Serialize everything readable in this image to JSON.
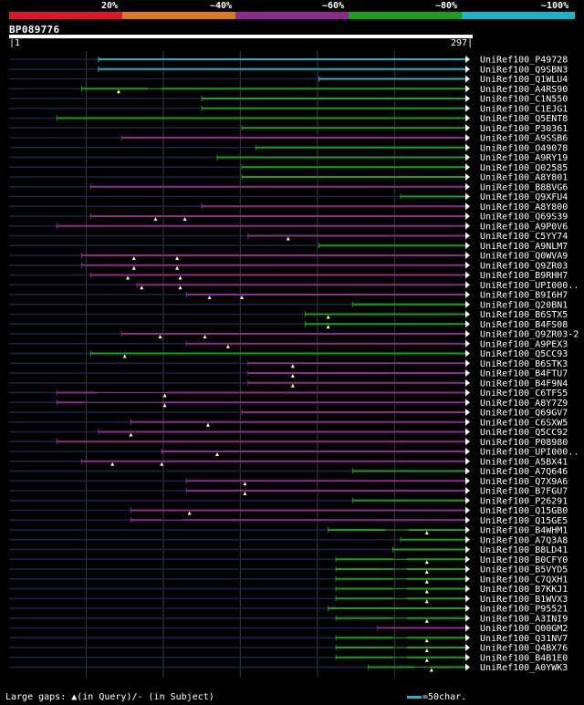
{
  "legend": {
    "labels": [
      "20%",
      "~40%",
      "~60%",
      "~80%",
      "~100%"
    ],
    "colors": [
      "#e0162b",
      "#e0781c",
      "#8e2a8e",
      "#18a018",
      "#17b7c7"
    ]
  },
  "query_id": "BP089776",
  "ruler": {
    "start": "1",
    "end": "297"
  },
  "colors": {
    "query_line": "#1c2350",
    "grid": "#3a3a3a",
    "gap_marker": "#ffff9e",
    "arrow_fill": "#ffffff"
  },
  "hits": [
    {
      "name": "UniRef100_P49728",
      "cls": 4,
      "start": 59,
      "mid": null,
      "gaps": []
    },
    {
      "name": "UniRef100_Q9SBN3",
      "cls": 4,
      "start": 59,
      "mid": null,
      "gaps": []
    },
    {
      "name": "UniRef100_Q1WLU4",
      "cls": 4,
      "start": 202,
      "mid": null,
      "gaps": []
    },
    {
      "name": "UniRef100_A4RS90",
      "cls": 3,
      "start": 48,
      "mid": [
        91,
        100
      ],
      "gaps": [
        72
      ]
    },
    {
      "name": "UniRef100_C1N550",
      "cls": 3,
      "start": 126,
      "mid": null,
      "gaps": []
    },
    {
      "name": "UniRef100_C1EJG1",
      "cls": 3,
      "start": 126,
      "mid": null,
      "gaps": []
    },
    {
      "name": "UniRef100_Q5ENT8",
      "cls": 3,
      "start": 32,
      "mid": null,
      "gaps": []
    },
    {
      "name": "UniRef100_P30361",
      "cls": 3,
      "start": 152,
      "mid": null,
      "gaps": []
    },
    {
      "name": "UniRef100_A9SSB6",
      "cls": 2,
      "start": 74,
      "mid": null,
      "gaps": []
    },
    {
      "name": "UniRef100_O49078",
      "cls": 3,
      "start": 161,
      "mid": null,
      "gaps": []
    },
    {
      "name": "UniRef100_A9RY19",
      "cls": 3,
      "start": 136,
      "mid": null,
      "gaps": []
    },
    {
      "name": "UniRef100_Q02585",
      "cls": 3,
      "start": 152,
      "mid": null,
      "gaps": []
    },
    {
      "name": "UniRef100_A8Y801",
      "cls": 3,
      "start": 152,
      "mid": null,
      "gaps": []
    },
    {
      "name": "UniRef100_B8BVG6",
      "cls": 2,
      "start": 54,
      "mid": null,
      "gaps": []
    },
    {
      "name": "UniRef100_Q9XFU4",
      "cls": 3,
      "start": 255,
      "mid": null,
      "gaps": []
    },
    {
      "name": "UniRef100_A8Y800",
      "cls": 2,
      "start": 126,
      "mid": null,
      "gaps": []
    },
    {
      "name": "UniRef100_Q69S39",
      "cls": 2,
      "start": 54,
      "mid": null,
      "gaps": [
        96,
        115
      ]
    },
    {
      "name": "UniRef100_A9P0V6",
      "cls": 2,
      "start": 32,
      "mid": null,
      "gaps": []
    },
    {
      "name": "UniRef100_C5YY74",
      "cls": 2,
      "start": 156,
      "mid": null,
      "gaps": [
        182
      ]
    },
    {
      "name": "UniRef100_A9NLM7",
      "cls": 3,
      "start": 202,
      "mid": null,
      "gaps": []
    },
    {
      "name": "UniRef100_Q0WVA9",
      "cls": 2,
      "start": 48,
      "mid": null,
      "gaps": [
        82,
        110
      ]
    },
    {
      "name": "UniRef100_Q9ZR03",
      "cls": 2,
      "start": 48,
      "mid": null,
      "gaps": [
        82,
        110
      ]
    },
    {
      "name": "UniRef100_B9RHH7",
      "cls": 2,
      "start": 54,
      "mid": null,
      "gaps": [
        78,
        112
      ]
    },
    {
      "name": "UniRef100_UPI000..",
      "cls": 2,
      "start": 84,
      "mid": null,
      "gaps": [
        87,
        112
      ]
    },
    {
      "name": "UniRef100_B9I6H7",
      "cls": 2,
      "start": 116,
      "mid": null,
      "gaps": [
        131,
        152
      ]
    },
    {
      "name": "UniRef100_Q20BN1",
      "cls": 3,
      "start": 224,
      "mid": null,
      "gaps": []
    },
    {
      "name": "UniRef100_B6STX5",
      "cls": 3,
      "start": 193,
      "mid": null,
      "gaps": [
        208
      ]
    },
    {
      "name": "UniRef100_B4FS08",
      "cls": 3,
      "start": 193,
      "mid": null,
      "gaps": [
        208
      ]
    },
    {
      "name": "UniRef100_Q9ZR03-2",
      "cls": 2,
      "start": 74,
      "mid": null,
      "gaps": [
        99,
        128
      ]
    },
    {
      "name": "UniRef100_A9PEX3",
      "cls": 2,
      "start": 116,
      "mid": null,
      "gaps": [
        143
      ]
    },
    {
      "name": "UniRef100_Q5CC93",
      "cls": 3,
      "start": 54,
      "mid": null,
      "gaps": [
        76
      ]
    },
    {
      "name": "UniRef100_B6STK3",
      "cls": 2,
      "start": 156,
      "mid": null,
      "gaps": [
        185
      ]
    },
    {
      "name": "UniRef100_B4FTU7",
      "cls": 2,
      "start": 156,
      "mid": null,
      "gaps": [
        185
      ]
    },
    {
      "name": "UniRef100_B4F9N4",
      "cls": 2,
      "start": 156,
      "mid": null,
      "gaps": [
        185
      ]
    },
    {
      "name": "UniRef100_C6TFS5",
      "cls": 2,
      "start": 32,
      "mid": [
        58,
        103
      ],
      "gaps": [
        102
      ]
    },
    {
      "name": "UniRef100_A8Y7Z9",
      "cls": 2,
      "start": 32,
      "mid": [
        50,
        100
      ],
      "gaps": [
        102
      ]
    },
    {
      "name": "UniRef100_Q69GV7",
      "cls": 2,
      "start": 152,
      "mid": null,
      "gaps": []
    },
    {
      "name": "UniRef100_C6SXW5",
      "cls": 2,
      "start": 80,
      "mid": null,
      "gaps": [
        130
      ]
    },
    {
      "name": "UniRef100_Q5CC92",
      "cls": 2,
      "start": 59,
      "mid": null,
      "gaps": [
        80
      ]
    },
    {
      "name": "UniRef100_P08980",
      "cls": 2,
      "start": 32,
      "mid": null,
      "gaps": []
    },
    {
      "name": "UniRef100_UPI000..",
      "cls": 2,
      "start": 100,
      "mid": null,
      "gaps": [
        136
      ]
    },
    {
      "name": "UniRef100_A5BX41",
      "cls": 2,
      "start": 48,
      "mid": null,
      "gaps": [
        68,
        100
      ]
    },
    {
      "name": "UniRef100_A7Q646",
      "cls": 3,
      "start": 224,
      "mid": null,
      "gaps": []
    },
    {
      "name": "UniRef100_Q7X9A6",
      "cls": 2,
      "start": 116,
      "mid": null,
      "gaps": [
        154
      ]
    },
    {
      "name": "UniRef100_B7FGU7",
      "cls": 2,
      "start": 116,
      "mid": null,
      "gaps": [
        154
      ]
    },
    {
      "name": "UniRef100_P26291",
      "cls": 3,
      "start": 224,
      "mid": null,
      "gaps": []
    },
    {
      "name": "UniRef100_Q15GB0",
      "cls": 2,
      "start": 80,
      "mid": null,
      "gaps": [
        118
      ]
    },
    {
      "name": "UniRef100_Q15GE5",
      "cls": 2,
      "start": 80,
      "mid": [
        100,
        114
      ],
      "gaps": []
    },
    {
      "name": "UniRef100_B4WHM1",
      "cls": 3,
      "start": 208,
      "mid": [
        245,
        260
      ],
      "gaps": [
        272
      ]
    },
    {
      "name": "UniRef100_A7Q3A8",
      "cls": 3,
      "start": 255,
      "mid": null,
      "gaps": []
    },
    {
      "name": "UniRef100_B8LD41",
      "cls": 3,
      "start": 250,
      "mid": null,
      "gaps": []
    },
    {
      "name": "UniRef100_B0CFY0",
      "cls": 3,
      "start": 213,
      "mid": [
        250,
        259
      ],
      "gaps": [
        272
      ]
    },
    {
      "name": "UniRef100_B5VYD5",
      "cls": 3,
      "start": 213,
      "mid": [
        250,
        259
      ],
      "gaps": [
        272
      ]
    },
    {
      "name": "UniRef100_C7QXH1",
      "cls": 3,
      "start": 213,
      "mid": [
        250,
        259
      ],
      "gaps": [
        272
      ]
    },
    {
      "name": "UniRef100_B7KKJ1",
      "cls": 3,
      "start": 213,
      "mid": [
        250,
        259
      ],
      "gaps": [
        272
      ]
    },
    {
      "name": "UniRef100_B1WVX3",
      "cls": 3,
      "start": 213,
      "mid": [
        250,
        259
      ],
      "gaps": [
        272
      ]
    },
    {
      "name": "UniRef100_P95521",
      "cls": 3,
      "start": 208,
      "mid": null,
      "gaps": []
    },
    {
      "name": "UniRef100_A3INI9",
      "cls": 3,
      "start": 213,
      "mid": [
        250,
        259
      ],
      "gaps": [
        272
      ]
    },
    {
      "name": "UniRef100_Q00GM2",
      "cls": 2,
      "start": 240,
      "mid": null,
      "gaps": []
    },
    {
      "name": "UniRef100_Q31NV7",
      "cls": 3,
      "start": 213,
      "mid": [
        250,
        259
      ],
      "gaps": [
        272
      ]
    },
    {
      "name": "UniRef100_Q4BX76",
      "cls": 3,
      "start": 213,
      "mid": [
        250,
        259
      ],
      "gaps": [
        272
      ]
    },
    {
      "name": "UniRef100_B4B1E0",
      "cls": 3,
      "start": 213,
      "mid": [
        250,
        259
      ],
      "gaps": [
        272
      ]
    },
    {
      "name": "UniRef100_A0YWK3",
      "cls": 3,
      "start": 234,
      "mid": [
        264,
        274
      ],
      "gaps": [
        275
      ]
    }
  ],
  "footer": {
    "note": "Large gaps: ▲(in Query)/- (in Subject)",
    "scale_label": "=50char."
  }
}
